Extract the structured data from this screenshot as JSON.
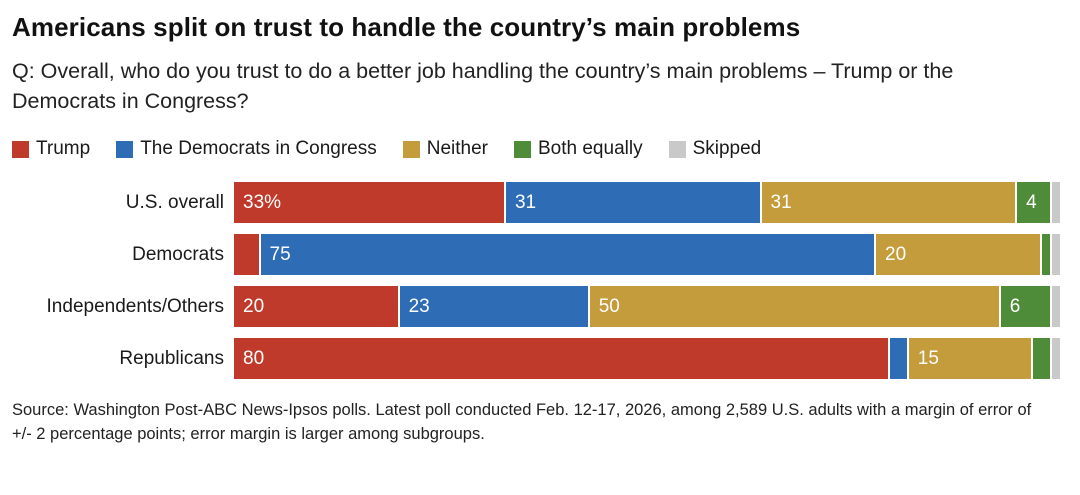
{
  "title": "Americans split on trust to handle the country’s main problems",
  "question": "Q: Overall, who do you trust to do a better job handling the country’s main problems – Trump or the Democrats in Congress?",
  "source": "Source: Washington Post-ABC News-Ipsos polls. Latest poll conducted Feb. 12-17, 2026, among 2,589 U.S. adults with a margin of error of +/- 2 percentage points; error margin is larger among subgroups.",
  "colors": {
    "trump": "#c03a2c",
    "democrats": "#2e6cb5",
    "neither": "#c59c3c",
    "both": "#4e8c39",
    "skipped": "#c9c9c9"
  },
  "chart_data": {
    "type": "bar",
    "subtype": "horizontal-stacked",
    "title": "Americans split on trust to handle the country’s main problems",
    "xlim": [
      0,
      100
    ],
    "legend": [
      {
        "name": "trump",
        "label": "Trump",
        "color": "#c03a2c"
      },
      {
        "name": "democrats",
        "label": "The Democrats in Congress",
        "color": "#2e6cb5"
      },
      {
        "name": "neither",
        "label": "Neither",
        "color": "#c59c3c"
      },
      {
        "name": "both",
        "label": "Both equally",
        "color": "#4e8c39"
      },
      {
        "name": "skipped",
        "label": "Skipped",
        "color": "#c9c9c9"
      }
    ],
    "categories": [
      "U.S. overall",
      "Democrats",
      "Independents/Others",
      "Republicans"
    ],
    "series": [
      {
        "name": "Trump",
        "values": [
          33,
          3,
          20,
          80
        ]
      },
      {
        "name": "The Democrats in Congress",
        "values": [
          31,
          75,
          23,
          2
        ]
      },
      {
        "name": "Neither",
        "values": [
          31,
          20,
          50,
          15
        ]
      },
      {
        "name": "Both equally",
        "values": [
          4,
          1,
          6,
          2
        ]
      },
      {
        "name": "Skipped",
        "values": [
          1,
          1,
          1,
          1
        ]
      }
    ],
    "rows": [
      {
        "label": "U.S. overall",
        "segments": [
          {
            "key": "trump",
            "value": 33,
            "text": "33%"
          },
          {
            "key": "democrats",
            "value": 31,
            "text": "31"
          },
          {
            "key": "neither",
            "value": 31,
            "text": "31"
          },
          {
            "key": "both",
            "value": 4,
            "text": "4"
          },
          {
            "key": "skipped",
            "value": 1,
            "text": ""
          }
        ]
      },
      {
        "label": "Democrats",
        "segments": [
          {
            "key": "trump",
            "value": 3,
            "text": ""
          },
          {
            "key": "democrats",
            "value": 75,
            "text": "75"
          },
          {
            "key": "neither",
            "value": 20,
            "text": "20"
          },
          {
            "key": "both",
            "value": 1,
            "text": ""
          },
          {
            "key": "skipped",
            "value": 1,
            "text": ""
          }
        ]
      },
      {
        "label": "Independents/Others",
        "segments": [
          {
            "key": "trump",
            "value": 20,
            "text": "20"
          },
          {
            "key": "democrats",
            "value": 23,
            "text": "23"
          },
          {
            "key": "neither",
            "value": 50,
            "text": "50"
          },
          {
            "key": "both",
            "value": 6,
            "text": "6"
          },
          {
            "key": "skipped",
            "value": 1,
            "text": ""
          }
        ]
      },
      {
        "label": "Republicans",
        "segments": [
          {
            "key": "trump",
            "value": 80,
            "text": "80"
          },
          {
            "key": "democrats",
            "value": 2,
            "text": ""
          },
          {
            "key": "neither",
            "value": 15,
            "text": "15"
          },
          {
            "key": "both",
            "value": 2,
            "text": ""
          },
          {
            "key": "skipped",
            "value": 1,
            "text": ""
          }
        ]
      }
    ]
  }
}
